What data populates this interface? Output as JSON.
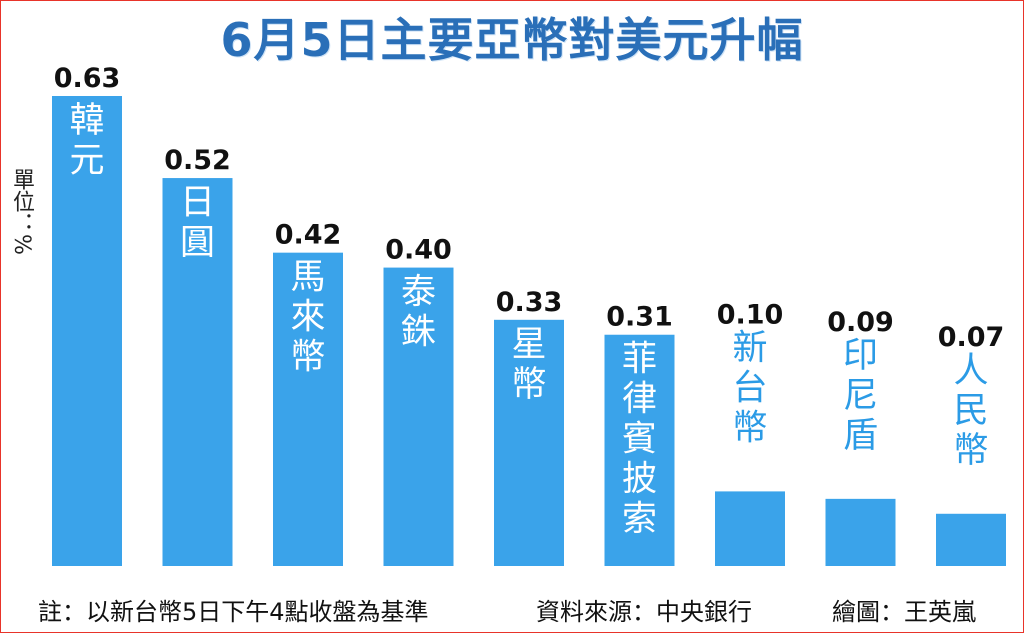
{
  "title": "6月5日主要亞幣對美元升幅",
  "unit_label": "單位：%",
  "footer": {
    "note": "註：以新台幣5日下午4點收盤為基準",
    "source": "資料來源：中央銀行",
    "artist": "繪圖：王英嵐"
  },
  "colors": {
    "bar": "#3aa3ea",
    "title": "#2a6fb8",
    "label_inside": "#ffffff",
    "label_outside": "#2b9be6",
    "frame": "#e8342a"
  },
  "chart_data": {
    "type": "bar",
    "title": "6月5日主要亞幣對美元升幅",
    "ylabel": "單位：%",
    "ylim": [
      0,
      0.63
    ],
    "categories": [
      "韓元",
      "日圓",
      "馬來幣",
      "泰銖",
      "星幣",
      "菲律賓披索",
      "新台幣",
      "印尼盾",
      "人民幣"
    ],
    "values": [
      0.63,
      0.52,
      0.42,
      0.4,
      0.33,
      0.31,
      0.1,
      0.09,
      0.07
    ],
    "value_labels": [
      "0.63",
      "0.52",
      "0.42",
      "0.40",
      "0.33",
      "0.31",
      "0.10",
      "0.09",
      "0.07"
    ],
    "grid": false,
    "legend": "none"
  }
}
